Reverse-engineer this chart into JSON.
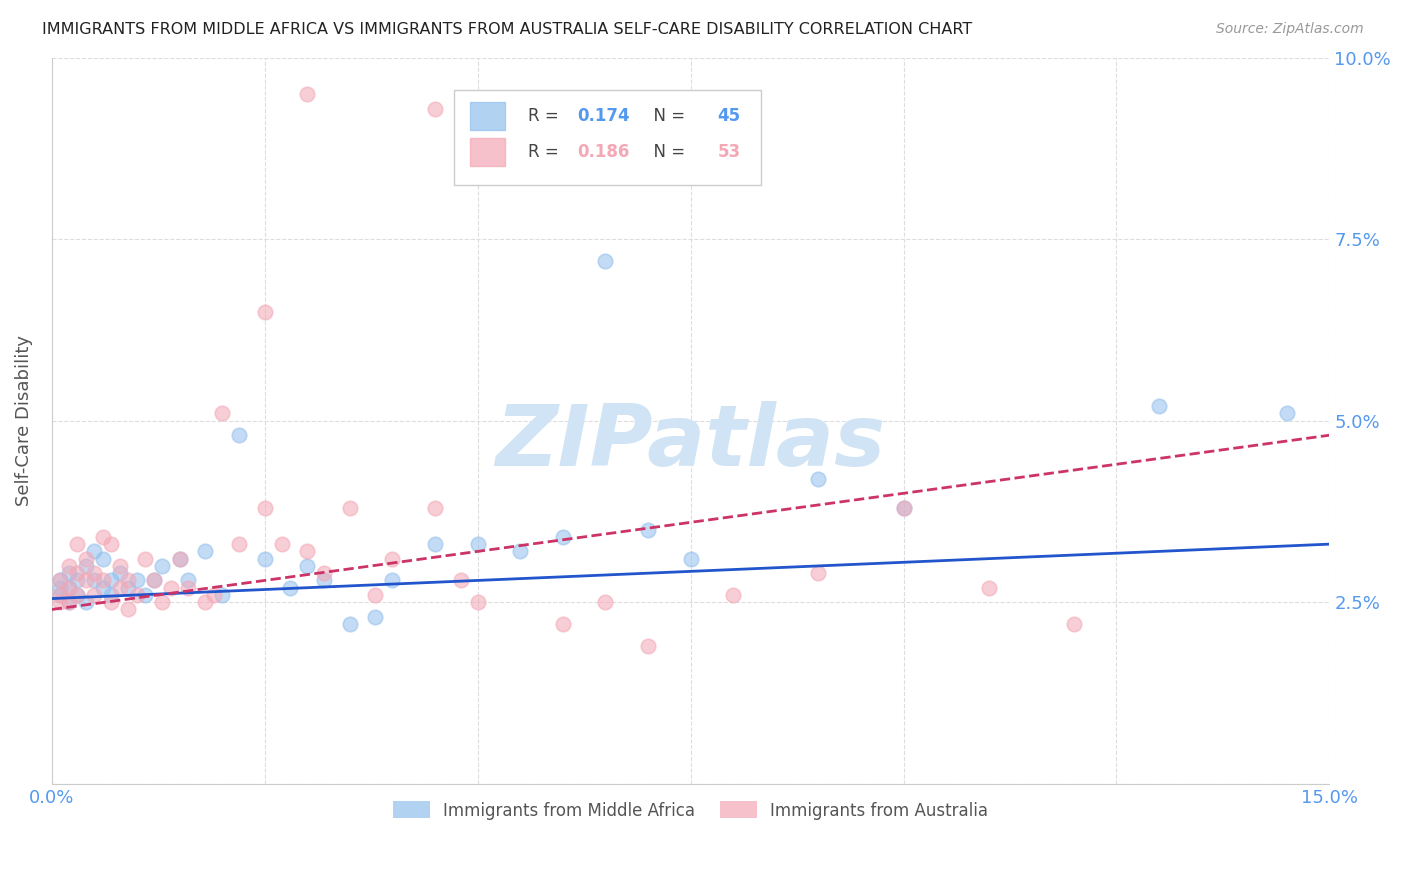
{
  "title": "IMMIGRANTS FROM MIDDLE AFRICA VS IMMIGRANTS FROM AUSTRALIA SELF-CARE DISABILITY CORRELATION CHART",
  "source": "Source: ZipAtlas.com",
  "ylabel": "Self-Care Disability",
  "xlim": [
    0.0,
    0.15
  ],
  "ylim": [
    0.0,
    0.1
  ],
  "series1_label": "Immigrants from Middle Africa",
  "series2_label": "Immigrants from Australia",
  "R1": 0.174,
  "N1": 45,
  "R2": 0.186,
  "N2": 53,
  "color1": "#92BFED",
  "color2": "#F4A7B5",
  "trend1_color": "#2255CC",
  "trend2_color": "#CC3366",
  "background_color": "#FFFFFF",
  "grid_color": "#DDDDDD",
  "title_color": "#222222",
  "axis_label_color": "#555555",
  "right_tick_color": "#5599EE",
  "bottom_tick_color": "#5599EE",
  "legend_border_color": "#CCCCCC",
  "watermark_color": "#D0E4F5",
  "series1_x": [
    0.001,
    0.001,
    0.001,
    0.002,
    0.002,
    0.002,
    0.003,
    0.003,
    0.004,
    0.004,
    0.005,
    0.005,
    0.006,
    0.006,
    0.007,
    0.007,
    0.008,
    0.009,
    0.01,
    0.011,
    0.012,
    0.013,
    0.015,
    0.016,
    0.018,
    0.02,
    0.022,
    0.025,
    0.028,
    0.03,
    0.032,
    0.035,
    0.038,
    0.04,
    0.045,
    0.05,
    0.055,
    0.06,
    0.065,
    0.07,
    0.075,
    0.09,
    0.1,
    0.13,
    0.145
  ],
  "series1_y": [
    0.028,
    0.027,
    0.026,
    0.029,
    0.027,
    0.025,
    0.028,
    0.026,
    0.03,
    0.025,
    0.032,
    0.028,
    0.027,
    0.031,
    0.028,
    0.026,
    0.029,
    0.027,
    0.028,
    0.026,
    0.028,
    0.03,
    0.031,
    0.028,
    0.032,
    0.026,
    0.048,
    0.031,
    0.027,
    0.03,
    0.028,
    0.022,
    0.023,
    0.028,
    0.033,
    0.033,
    0.032,
    0.034,
    0.072,
    0.035,
    0.031,
    0.042,
    0.038,
    0.052,
    0.051
  ],
  "series2_x": [
    0.001,
    0.001,
    0.001,
    0.002,
    0.002,
    0.002,
    0.003,
    0.003,
    0.003,
    0.004,
    0.004,
    0.005,
    0.005,
    0.006,
    0.006,
    0.007,
    0.007,
    0.008,
    0.008,
    0.009,
    0.009,
    0.01,
    0.011,
    0.012,
    0.013,
    0.014,
    0.015,
    0.016,
    0.018,
    0.019,
    0.02,
    0.022,
    0.025,
    0.027,
    0.03,
    0.032,
    0.035,
    0.038,
    0.04,
    0.045,
    0.048,
    0.05,
    0.06,
    0.065,
    0.07,
    0.08,
    0.09,
    0.1,
    0.11,
    0.12,
    0.025,
    0.03,
    0.045
  ],
  "series2_y": [
    0.026,
    0.028,
    0.025,
    0.03,
    0.027,
    0.025,
    0.029,
    0.033,
    0.026,
    0.028,
    0.031,
    0.026,
    0.029,
    0.034,
    0.028,
    0.025,
    0.033,
    0.027,
    0.03,
    0.024,
    0.028,
    0.026,
    0.031,
    0.028,
    0.025,
    0.027,
    0.031,
    0.027,
    0.025,
    0.026,
    0.051,
    0.033,
    0.038,
    0.033,
    0.032,
    0.029,
    0.038,
    0.026,
    0.031,
    0.038,
    0.028,
    0.025,
    0.022,
    0.025,
    0.019,
    0.026,
    0.029,
    0.038,
    0.027,
    0.022,
    0.065,
    0.095,
    0.093
  ],
  "trend1_x0": 0.0,
  "trend1_x1": 0.15,
  "trend1_y0": 0.0255,
  "trend1_y1": 0.033,
  "trend2_x0": 0.0,
  "trend2_x1": 0.15,
  "trend2_y0": 0.024,
  "trend2_y1": 0.048
}
